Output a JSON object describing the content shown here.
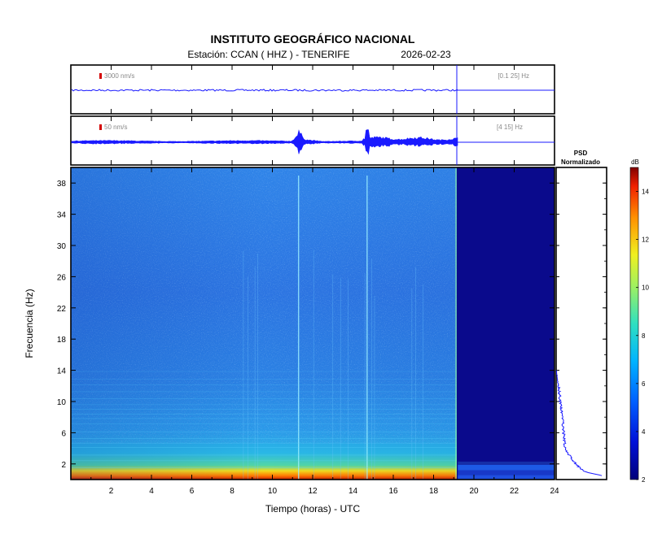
{
  "header": {
    "institution": "INSTITUTO GEOGRÁFICO NACIONAL",
    "station": "Estación:  CCAN ( HHZ ) - TENERIFE",
    "date": "2026-02-23"
  },
  "traces": [
    {
      "scale_label": "3000 nm/s",
      "band_label": "[0.1 25] Hz"
    },
    {
      "scale_label": "50 nm/s",
      "band_label": "[4 15] Hz"
    }
  ],
  "psd_panel": {
    "title_line1": "PSD",
    "title_line2": "Normalizado"
  },
  "colorbar": {
    "unit": "dB",
    "ticks": [
      "14",
      "12",
      "10",
      "8",
      "6",
      "4",
      "2"
    ],
    "min": 2,
    "max": 15
  },
  "colors": {
    "trace": "#1a1aff",
    "no_data": "#0a0a8c",
    "spectrogram_base": "#2c7de8"
  },
  "chart_data": {
    "type": "heatmap",
    "xlabel": "Tiempo (horas) - UTC",
    "ylabel": "Frecuencia  (Hz)",
    "xlim": [
      0,
      24
    ],
    "ylim": [
      0,
      40
    ],
    "x_ticks": [
      "2",
      "4",
      "6",
      "8",
      "10",
      "12",
      "14",
      "16",
      "18",
      "20",
      "22",
      "24"
    ],
    "y_ticks": [
      "2",
      "6",
      "10",
      "14",
      "18",
      "22",
      "26",
      "30",
      "34",
      "38"
    ],
    "data_end_hour": 19.2,
    "events_hours": [
      11.3,
      14.7
    ],
    "psd_curve": [
      {
        "freq": 0.5,
        "value": 0.95
      },
      {
        "freq": 1.0,
        "value": 0.62
      },
      {
        "freq": 1.5,
        "value": 0.5
      },
      {
        "freq": 2.5,
        "value": 0.34
      },
      {
        "freq": 4.0,
        "value": 0.19
      },
      {
        "freq": 6.0,
        "value": 0.16
      },
      {
        "freq": 8.0,
        "value": 0.13
      },
      {
        "freq": 10.0,
        "value": 0.09
      },
      {
        "freq": 12.0,
        "value": 0.05
      },
      {
        "freq": 13.0,
        "value": 0.02
      },
      {
        "freq": 14.0,
        "value": 0.01
      }
    ]
  }
}
